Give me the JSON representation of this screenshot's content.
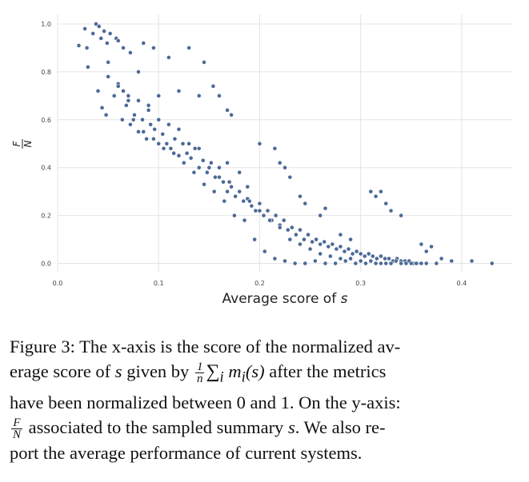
{
  "chart_data": {
    "type": "scatter",
    "xlabel": "Average score of s",
    "ylabel_num": "F",
    "ylabel_den": "N",
    "xlim": [
      0.0,
      0.45
    ],
    "ylim": [
      -0.035,
      1.04
    ],
    "xticks": [
      "0.0",
      "0.1",
      "0.2",
      "0.3",
      "0.4"
    ],
    "yticks": [
      "0.0",
      "0.2",
      "0.4",
      "0.6",
      "0.8",
      "1.0"
    ],
    "grid": true,
    "point_color": "#4c6a96",
    "x": [
      0.021,
      0.027,
      0.029,
      0.035,
      0.038,
      0.041,
      0.043,
      0.046,
      0.049,
      0.052,
      0.058,
      0.06,
      0.065,
      0.072,
      0.085,
      0.095,
      0.13,
      0.145,
      0.154,
      0.16,
      0.168,
      0.168,
      0.172,
      0.18,
      0.188,
      0.2,
      0.215,
      0.22,
      0.225,
      0.23,
      0.24,
      0.245,
      0.26,
      0.265,
      0.28,
      0.29,
      0.31,
      0.315,
      0.32,
      0.325,
      0.33,
      0.34,
      0.36,
      0.365,
      0.37,
      0.38,
      0.39,
      0.41,
      0.43,
      0.05,
      0.08,
      0.11,
      0.12,
      0.14,
      0.03,
      0.04,
      0.06,
      0.07,
      0.09,
      0.1,
      0.044,
      0.048,
      0.056,
      0.064,
      0.068,
      0.072,
      0.076,
      0.08,
      0.084,
      0.088,
      0.092,
      0.096,
      0.1,
      0.104,
      0.108,
      0.112,
      0.116,
      0.12,
      0.124,
      0.128,
      0.132,
      0.136,
      0.14,
      0.144,
      0.148,
      0.152,
      0.156,
      0.16,
      0.164,
      0.168,
      0.172,
      0.176,
      0.18,
      0.184,
      0.188,
      0.192,
      0.196,
      0.2,
      0.204,
      0.208,
      0.212,
      0.216,
      0.22,
      0.224,
      0.228,
      0.232,
      0.236,
      0.24,
      0.244,
      0.248,
      0.252,
      0.256,
      0.26,
      0.264,
      0.268,
      0.272,
      0.276,
      0.28,
      0.284,
      0.288,
      0.292,
      0.296,
      0.3,
      0.304,
      0.308,
      0.312,
      0.316,
      0.32,
      0.324,
      0.328,
      0.332,
      0.336,
      0.34,
      0.344,
      0.348,
      0.352,
      0.356,
      0.06,
      0.07,
      0.08,
      0.09,
      0.1,
      0.11,
      0.12,
      0.13,
      0.14,
      0.15,
      0.16,
      0.17,
      0.18,
      0.19,
      0.2,
      0.21,
      0.22,
      0.23,
      0.24,
      0.25,
      0.26,
      0.27,
      0.28,
      0.29,
      0.3,
      0.31,
      0.32,
      0.33,
      0.34,
      0.35,
      0.36,
      0.05,
      0.065,
      0.075,
      0.085,
      0.095,
      0.105,
      0.115,
      0.125,
      0.135,
      0.145,
      0.155,
      0.165,
      0.175,
      0.185,
      0.195,
      0.205,
      0.215,
      0.225,
      0.235,
      0.245,
      0.255,
      0.265,
      0.275,
      0.285,
      0.295,
      0.305,
      0.315,
      0.325,
      0.335,
      0.345,
      0.355,
      0.365,
      0.375
    ],
    "y": [
      0.91,
      0.98,
      0.9,
      0.96,
      1.0,
      0.99,
      0.94,
      0.97,
      0.92,
      0.96,
      0.94,
      0.93,
      0.9,
      0.88,
      0.92,
      0.9,
      0.9,
      0.84,
      0.74,
      0.7,
      0.64,
      0.42,
      0.62,
      0.38,
      0.32,
      0.5,
      0.48,
      0.42,
      0.4,
      0.36,
      0.28,
      0.25,
      0.2,
      0.23,
      0.12,
      0.1,
      0.3,
      0.28,
      0.3,
      0.25,
      0.22,
      0.2,
      0.08,
      0.05,
      0.07,
      0.02,
      0.01,
      0.01,
      0.0,
      0.84,
      0.8,
      0.86,
      0.72,
      0.7,
      0.82,
      0.72,
      0.75,
      0.68,
      0.66,
      0.7,
      0.65,
      0.62,
      0.7,
      0.6,
      0.66,
      0.58,
      0.62,
      0.55,
      0.6,
      0.52,
      0.58,
      0.56,
      0.5,
      0.54,
      0.5,
      0.48,
      0.52,
      0.45,
      0.5,
      0.46,
      0.44,
      0.48,
      0.4,
      0.43,
      0.38,
      0.42,
      0.36,
      0.4,
      0.34,
      0.3,
      0.32,
      0.28,
      0.3,
      0.26,
      0.27,
      0.24,
      0.22,
      0.25,
      0.2,
      0.22,
      0.18,
      0.2,
      0.16,
      0.18,
      0.14,
      0.15,
      0.12,
      0.14,
      0.1,
      0.12,
      0.09,
      0.1,
      0.08,
      0.09,
      0.07,
      0.08,
      0.06,
      0.07,
      0.05,
      0.06,
      0.04,
      0.05,
      0.04,
      0.03,
      0.04,
      0.03,
      0.02,
      0.03,
      0.02,
      0.02,
      0.01,
      0.02,
      0.01,
      0.01,
      0.01,
      0.0,
      0.0,
      0.74,
      0.7,
      0.68,
      0.64,
      0.6,
      0.58,
      0.56,
      0.5,
      0.48,
      0.4,
      0.36,
      0.34,
      0.3,
      0.26,
      0.22,
      0.18,
      0.15,
      0.1,
      0.08,
      0.06,
      0.04,
      0.03,
      0.02,
      0.02,
      0.01,
      0.01,
      0.0,
      0.0,
      0.0,
      0.0,
      0.0,
      0.78,
      0.72,
      0.6,
      0.55,
      0.52,
      0.48,
      0.46,
      0.42,
      0.38,
      0.33,
      0.3,
      0.26,
      0.2,
      0.18,
      0.1,
      0.05,
      0.02,
      0.01,
      0.0,
      0.0,
      0.01,
      0.0,
      0.0,
      0.01,
      0.0,
      0.0,
      0.0,
      0.0,
      0.01,
      0.0,
      0.0,
      0.0,
      0.0
    ]
  },
  "caption": {
    "l1": "Figure 3: The x-axis is the score of the normalized av-",
    "l2a": "erage score of ",
    "l2b": "s",
    "l2c": " given by ",
    "l2_frac_num": "1",
    "l2_frac_den": "n",
    "l2d": "∑",
    "l2e": "i",
    "l2f": " m",
    "l2g": "i",
    "l2h": "(s)",
    "l2i": " after the metrics",
    "l3": "have been normalized between 0 and 1. On the y-axis:",
    "l4_frac_num": "F",
    "l4_frac_den": "N",
    "l4a": " associated to the sampled summary ",
    "l4b": "s",
    "l4c": ".  We also re-",
    "l5": "port the average performance of current systems."
  }
}
